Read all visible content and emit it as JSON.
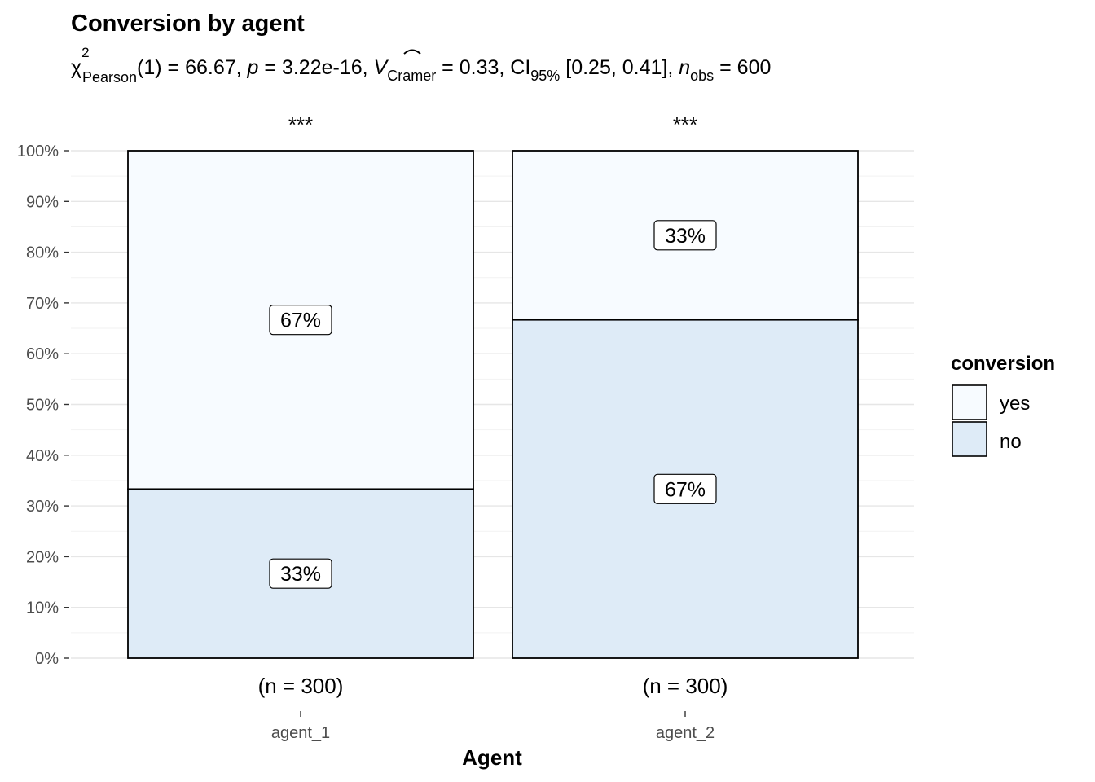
{
  "chart_data": {
    "type": "bar",
    "stacked": true,
    "title": "Conversion by agent",
    "subtitle": {
      "chi": "χ",
      "chi_sup": "2",
      "chi_sub": "Pearson",
      "df": "(1) = 66.67, ",
      "p_sym": "p",
      "p_val": " = 3.22e-16, ",
      "v_sym": "V",
      "v_sub": "Cramer",
      "v_val": " = 0.33, CI",
      "ci_sub": "95%",
      "ci_val": " [0.25, 0.41], ",
      "n_sym": "n",
      "n_sub": "obs",
      "n_val": " = 600"
    },
    "xlabel": "Agent",
    "ylabel": "",
    "categories": [
      "agent_1",
      "agent_2"
    ],
    "ylim": [
      0,
      100
    ],
    "yticks": [
      "0%",
      "10%",
      "20%",
      "30%",
      "40%",
      "50%",
      "60%",
      "70%",
      "80%",
      "90%",
      "100%"
    ],
    "series": [
      {
        "name": "no",
        "values": [
          33.33,
          66.67
        ],
        "labels": [
          "33%",
          "67%"
        ],
        "color": "#deebf7"
      },
      {
        "name": "yes",
        "values": [
          66.67,
          33.33
        ],
        "labels": [
          "67%",
          "33%"
        ],
        "color": "#f7fbff"
      }
    ],
    "counts": [
      "(n = 300)",
      "(n = 300)"
    ],
    "significance": [
      "***",
      "***"
    ],
    "legend": {
      "title": "conversion",
      "position": "right",
      "items": [
        {
          "label": "yes",
          "color": "#f7fbff"
        },
        {
          "label": "no",
          "color": "#deebf7"
        }
      ]
    },
    "grid": true
  }
}
